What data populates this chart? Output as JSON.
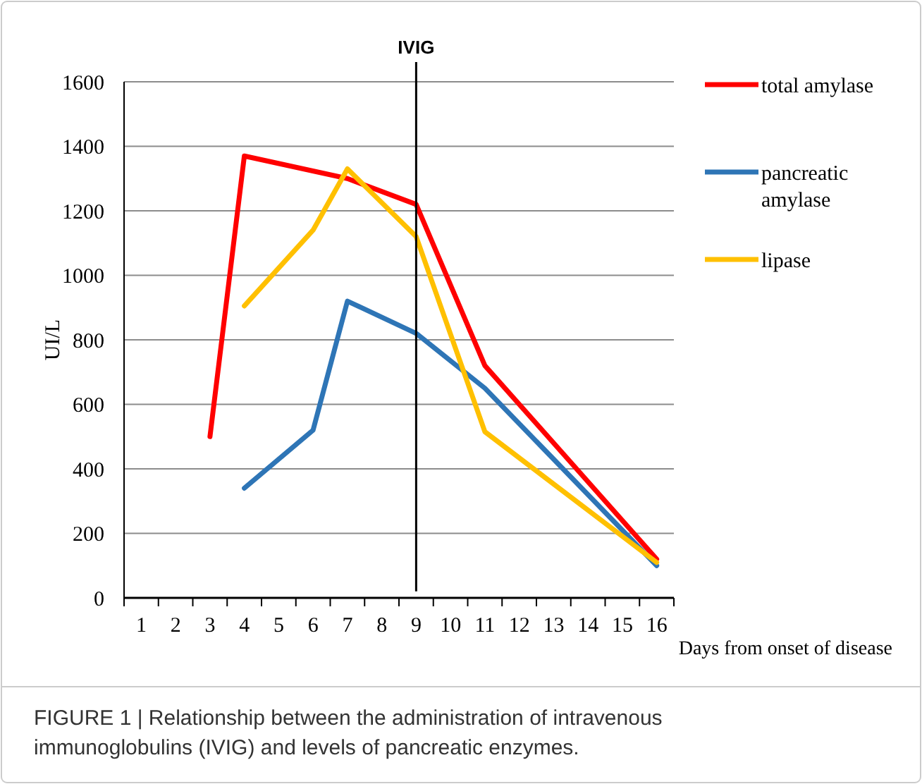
{
  "chart_data": {
    "type": "line",
    "xlabel": "Days from onset of disease",
    "ylabel": "UI/L",
    "xlim": [
      0.5,
      16.5
    ],
    "xticks": [
      1,
      2,
      3,
      4,
      5,
      6,
      7,
      8,
      9,
      10,
      11,
      12,
      13,
      14,
      15,
      16
    ],
    "ylim": [
      0,
      1600
    ],
    "yticks": [
      0,
      200,
      400,
      600,
      800,
      1000,
      1200,
      1400,
      1600
    ],
    "grid": "y",
    "legend": "top right",
    "line_style": "solid",
    "series": [
      {
        "name": "total amylase",
        "color": "#ff0000",
        "x": [
          3,
          4,
          7,
          9,
          11,
          16
        ],
        "values": [
          500,
          1370,
          1300,
          1220,
          720,
          120
        ]
      },
      {
        "name": "pancreatic amylase",
        "color": "#2e75b6",
        "x": [
          4,
          6,
          7,
          9,
          11,
          16
        ],
        "values": [
          340,
          520,
          920,
          820,
          650,
          100
        ]
      },
      {
        "name": "lipase",
        "color": "#ffc000",
        "x": [
          4,
          6,
          7,
          9,
          11,
          16
        ],
        "values": [
          905,
          1140,
          1330,
          1120,
          515,
          110
        ]
      }
    ],
    "ref_lines": [
      {
        "axis": "x",
        "value": 9,
        "label": "IVIG",
        "color": "#000000"
      }
    ],
    "annotations": [
      "FIGURE 1 | Relationship between the administration of intravenous immunoglobulins (IVIG) and levels of pancreatic enzymes."
    ]
  }
}
